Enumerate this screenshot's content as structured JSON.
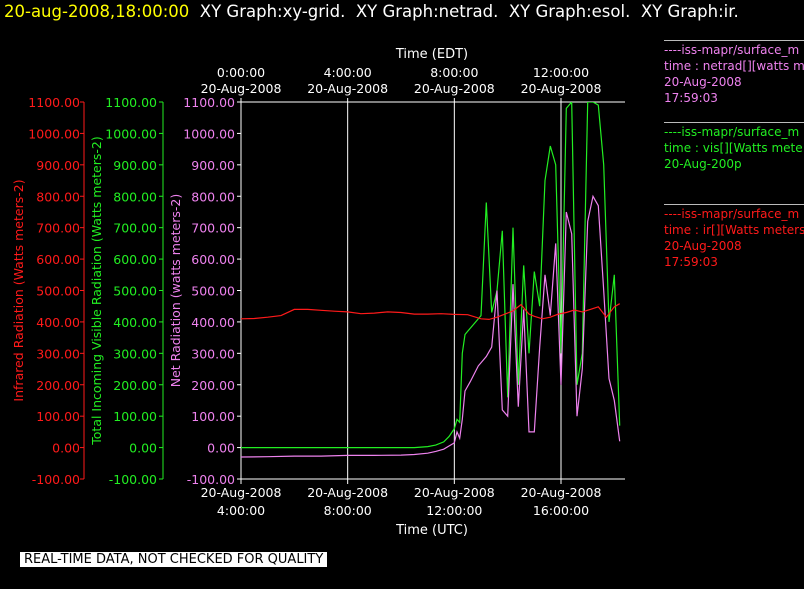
{
  "header": {
    "timestamp": "20-aug-2008,18:00:00",
    "graph_titles": [
      "XY Graph:xy-grid.",
      "XY Graph:netrad.",
      "XY Graph:esol.",
      "XY Graph:ir."
    ]
  },
  "colors": {
    "ir": "#ff1a1a",
    "vis": "#22ee22",
    "net": "#ee82ee",
    "grid": "#ffffff",
    "axis": "#ffffff",
    "bg": "#000000"
  },
  "chart_data": {
    "type": "line",
    "x_unit": "hours UTC, 20-Aug-2008",
    "xlim": [
      4,
      18.4
    ],
    "ylim": [
      -100,
      1100
    ],
    "top_axis": {
      "title": "Time (EDT)",
      "ticks": [
        {
          "x": 4,
          "time": "0:00:00",
          "date": "20-Aug-2008"
        },
        {
          "x": 8,
          "time": "4:00:00",
          "date": "20-Aug-2008"
        },
        {
          "x": 12,
          "time": "8:00:00",
          "date": "20-Aug-2008"
        },
        {
          "x": 16,
          "time": "12:00:00",
          "date": "20-Aug-2008"
        }
      ]
    },
    "bottom_axis": {
      "title": "Time (UTC)",
      "ticks": [
        {
          "x": 4,
          "date": "20-Aug-2008",
          "time": "4:00:00"
        },
        {
          "x": 8,
          "date": "20-Aug-2008",
          "time": "8:00:00"
        },
        {
          "x": 12,
          "date": "20-Aug-2008",
          "time": "12:00:00"
        },
        {
          "x": 16,
          "date": "20-Aug-2008",
          "time": "16:00:00"
        }
      ]
    },
    "y_axes": [
      {
        "label": "Infrared Radiation (Watts meters-2)",
        "color": "#ff1a1a"
      },
      {
        "label": "Total Incoming Visible Radiation (Watts meters-2)",
        "color": "#22ee22"
      },
      {
        "label": "Net Radiation (watts meters-2)",
        "color": "#ee82ee"
      }
    ],
    "y_ticks": [
      "1100.00",
      "1000.00",
      "900.00",
      "800.00",
      "700.00",
      "600.00",
      "500.00",
      "400.00",
      "300.00",
      "200.00",
      "100.00",
      "0.00",
      "-100.00"
    ],
    "grid_x": [
      8,
      12,
      16
    ],
    "series": [
      {
        "key": "ir",
        "color": "#ff1a1a",
        "x": [
          4.0,
          4.5,
          5.0,
          5.5,
          6.0,
          6.5,
          7.0,
          7.5,
          8.0,
          8.5,
          9.0,
          9.5,
          10.0,
          10.5,
          11.0,
          11.5,
          12.0,
          12.5,
          13.0,
          13.3,
          13.6,
          13.9,
          14.2,
          14.5,
          14.8,
          15.0,
          15.3,
          15.6,
          15.9,
          16.2,
          16.5,
          16.8,
          17.1,
          17.4,
          17.7,
          18.0,
          18.2
        ],
        "values": [
          410,
          411,
          415,
          420,
          440,
          440,
          437,
          434,
          432,
          426,
          428,
          432,
          430,
          425,
          425,
          426,
          424,
          423,
          410,
          408,
          415,
          425,
          435,
          455,
          425,
          418,
          410,
          415,
          425,
          430,
          438,
          432,
          440,
          448,
          415,
          448,
          458
        ]
      },
      {
        "key": "vis",
        "color": "#22ee22",
        "x": [
          4.0,
          5.0,
          6.0,
          7.0,
          8.0,
          9.0,
          10.0,
          10.5,
          11.0,
          11.3,
          11.6,
          11.8,
          12.0,
          12.1,
          12.2,
          12.3,
          12.4,
          12.5,
          12.8,
          13.0,
          13.2,
          13.4,
          13.6,
          13.8,
          14.0,
          14.2,
          14.4,
          14.6,
          14.8,
          15.0,
          15.2,
          15.4,
          15.6,
          15.8,
          16.0,
          16.2,
          16.4,
          16.6,
          16.8,
          17.0,
          17.2,
          17.4,
          17.6,
          17.8,
          18.0,
          18.2
        ],
        "values": [
          0,
          0,
          0,
          0,
          0,
          0,
          0,
          0,
          3,
          8,
          18,
          35,
          60,
          90,
          80,
          300,
          360,
          370,
          400,
          420,
          780,
          430,
          500,
          690,
          160,
          700,
          200,
          580,
          300,
          560,
          450,
          850,
          960,
          900,
          300,
          1080,
          1100,
          200,
          300,
          1100,
          1100,
          1090,
          900,
          400,
          550,
          70
        ]
      },
      {
        "key": "net",
        "color": "#ee82ee",
        "x": [
          4.0,
          5.0,
          6.0,
          7.0,
          8.0,
          9.0,
          10.0,
          10.5,
          11.0,
          11.3,
          11.6,
          11.8,
          12.0,
          12.1,
          12.2,
          12.3,
          12.4,
          12.6,
          12.9,
          13.2,
          13.4,
          13.6,
          13.8,
          14.0,
          14.2,
          14.4,
          14.6,
          14.8,
          15.0,
          15.2,
          15.4,
          15.6,
          15.8,
          16.0,
          16.2,
          16.4,
          16.6,
          16.8,
          17.0,
          17.2,
          17.4,
          17.6,
          17.8,
          18.0,
          18.2
        ],
        "values": [
          -30,
          -29,
          -27,
          -27,
          -25,
          -25,
          -24,
          -22,
          -18,
          -12,
          -5,
          5,
          15,
          50,
          30,
          90,
          180,
          210,
          260,
          290,
          320,
          500,
          120,
          100,
          520,
          130,
          440,
          50,
          50,
          320,
          550,
          420,
          650,
          200,
          750,
          680,
          100,
          250,
          720,
          800,
          770,
          500,
          220,
          150,
          20
        ]
      }
    ]
  },
  "legend": {
    "entries": [
      {
        "key": "net",
        "source": "----iss-mapr/surface_m",
        "field": "time : netrad[][watts m",
        "date": "20-Aug-2008",
        "time": "17:59:03",
        "color": "#ee82ee",
        "line_color": "#bbbbbb"
      },
      {
        "key": "vis",
        "source": "----iss-mapr/surface_m",
        "field": "time : vis[][Watts mete",
        "date": "20-Aug-200p",
        "time": "",
        "color": "#22ee22",
        "line_color": "#bbbbbb"
      },
      {
        "key": "ir",
        "source": "----iss-mapr/surface_m",
        "field": "time : ir[][Watts meters",
        "date": "20-Aug-2008",
        "time": "17:59:03",
        "color": "#ff1a1a",
        "line_color": "#bbbbbb"
      }
    ]
  },
  "disclaimer": "REAL-TIME DATA, NOT CHECKED FOR QUALITY"
}
